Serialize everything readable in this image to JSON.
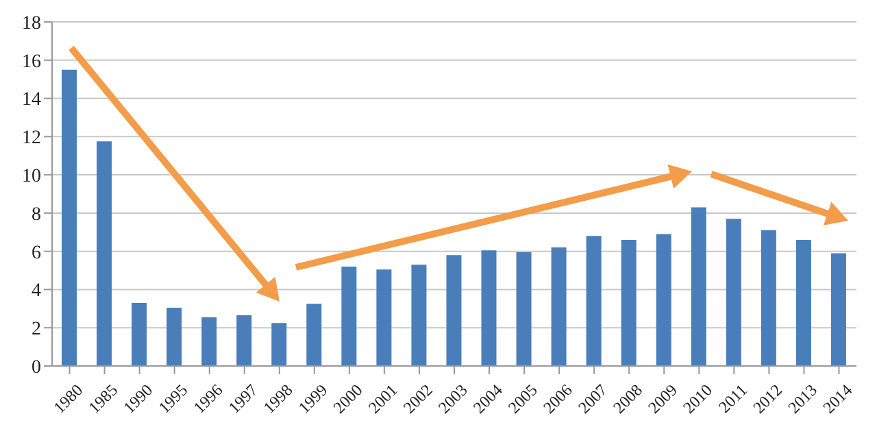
{
  "chart_data": {
    "type": "bar",
    "categories": [
      "1980",
      "1985",
      "1990",
      "1995",
      "1996",
      "1997",
      "1998",
      "1999",
      "2000",
      "2001",
      "2002",
      "2003",
      "2004",
      "2005",
      "2006",
      "2007",
      "2008",
      "2009",
      "2010",
      "2011",
      "2012",
      "2013",
      "2014"
    ],
    "values": [
      15.5,
      11.75,
      3.3,
      3.05,
      2.55,
      2.65,
      2.25,
      3.25,
      5.2,
      5.05,
      5.3,
      5.8,
      6.05,
      5.95,
      6.2,
      6.8,
      6.6,
      6.9,
      8.3,
      7.7,
      7.1,
      6.6,
      5.9
    ],
    "color": "#4a7ebb",
    "ylim": [
      0,
      18
    ],
    "yticks": [
      0,
      2,
      4,
      6,
      8,
      10,
      12,
      14,
      16,
      18
    ],
    "grid": "y"
  }
}
